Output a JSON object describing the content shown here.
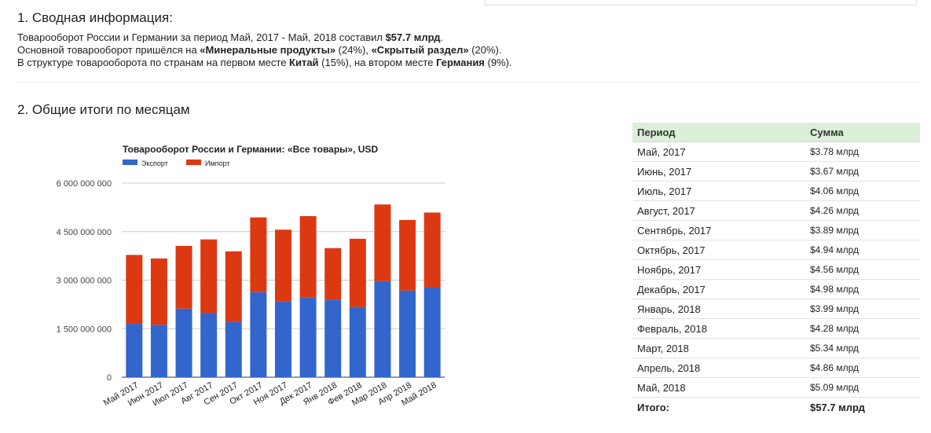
{
  "section1": {
    "title": "1. Сводная информация:",
    "line1_prefix": "Товарооборот России и Германии за период Май, 2017 - Май, 2018 составил ",
    "line1_value": "$57.7 млрд",
    "line1_suffix": ".",
    "line2_prefix": "Основной товарооборот пришёлся на ",
    "line2_item1": "«Минеральные продукты»",
    "line2_mid": " (24%), ",
    "line2_item2": "«Скрытый раздел»",
    "line2_suffix": " (20%).",
    "line3_prefix": "В структуре товарооборота по странам на первом месте ",
    "line3_country1": "Китай",
    "line3_mid": " (15%), на втором месте ",
    "line3_country2": "Германия",
    "line3_suffix": " (9%)."
  },
  "section2": {
    "title": "2. Общие итоги по месяцам"
  },
  "chart_data": {
    "type": "bar",
    "stacked": true,
    "title": "Товарооборот России и Германии: «Все товары», USD",
    "legend_position": "top-left",
    "categories": [
      "Май 2017",
      "Июн 2017",
      "Июл 2017",
      "Авг 2017",
      "Сен 2017",
      "Окт 2017",
      "Ноя 2017",
      "Дек 2017",
      "Янв 2018",
      "Фев 2018",
      "Мар 2018",
      "Апр 2018",
      "Май 2018"
    ],
    "series": [
      {
        "name": "Экспорт",
        "color": "#3366cc",
        "values": [
          1650000000,
          1620000000,
          2120000000,
          1990000000,
          1710000000,
          2630000000,
          2340000000,
          2460000000,
          2400000000,
          2170000000,
          2970000000,
          2680000000,
          2780000000
        ]
      },
      {
        "name": "Импорт",
        "color": "#dc3912",
        "values": [
          2130000000,
          2050000000,
          1940000000,
          2270000000,
          2180000000,
          2310000000,
          2220000000,
          2520000000,
          1590000000,
          2110000000,
          2370000000,
          2180000000,
          2310000000
        ]
      }
    ],
    "y_ticks": [
      "0",
      "1 500 000 000",
      "3 000 000 000",
      "4 500 000 000",
      "6 000 000 000"
    ],
    "ylim": [
      0,
      6000000000
    ],
    "grid": true
  },
  "table": {
    "header": {
      "period": "Период",
      "sum": "Сумма"
    },
    "rows": [
      {
        "period": "Май, 2017",
        "sum": "$3.78 млрд"
      },
      {
        "period": "Июнь, 2017",
        "sum": "$3.67 млрд"
      },
      {
        "period": "Июль, 2017",
        "sum": "$4.06 млрд"
      },
      {
        "period": "Август, 2017",
        "sum": "$4.26 млрд"
      },
      {
        "period": "Сентябрь, 2017",
        "sum": "$3.89 млрд"
      },
      {
        "period": "Октябрь, 2017",
        "sum": "$4.94 млрд"
      },
      {
        "period": "Ноябрь, 2017",
        "sum": "$4.56 млрд"
      },
      {
        "period": "Декабрь, 2017",
        "sum": "$4.98 млрд"
      },
      {
        "period": "Январь, 2018",
        "sum": "$3.99 млрд"
      },
      {
        "period": "Февраль, 2018",
        "sum": "$4.28 млрд"
      },
      {
        "period": "Март, 2018",
        "sum": "$5.34 млрд"
      },
      {
        "period": "Апрель, 2018",
        "sum": "$4.86 млрд"
      },
      {
        "period": "Май, 2018",
        "sum": "$5.09 млрд"
      }
    ],
    "total": {
      "label": "Итого:",
      "sum": "$57.7 млрд"
    }
  }
}
